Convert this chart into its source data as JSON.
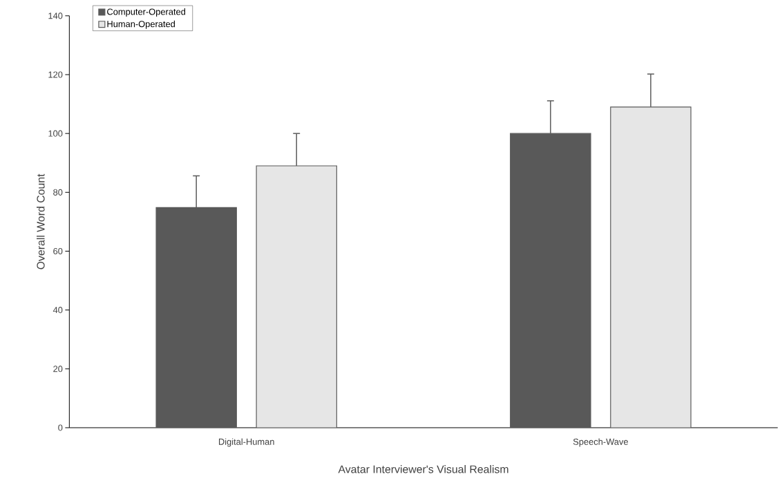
{
  "chart_data": {
    "type": "bar",
    "xlabel": "Avatar Interviewer's Visual Realism",
    "ylabel": "Overall Word Count",
    "categories": [
      "Digital-Human",
      "Speech-Wave"
    ],
    "series": [
      {
        "name": "Computer-Operated",
        "color": "#595959",
        "values": [
          74.8,
          100.0
        ],
        "errors": [
          [
            74.8,
            85.6
          ],
          [
            100.0,
            111.1
          ]
        ]
      },
      {
        "name": "Human-Operated",
        "color": "#e6e6e6",
        "values": [
          89.0,
          109.0
        ],
        "errors": [
          [
            89.0,
            100.0
          ],
          [
            109.0,
            120.2
          ]
        ]
      }
    ],
    "ylim": [
      0,
      140
    ],
    "yticks": [
      0,
      20,
      40,
      60,
      80,
      100,
      120,
      140
    ],
    "legend": "top left"
  }
}
